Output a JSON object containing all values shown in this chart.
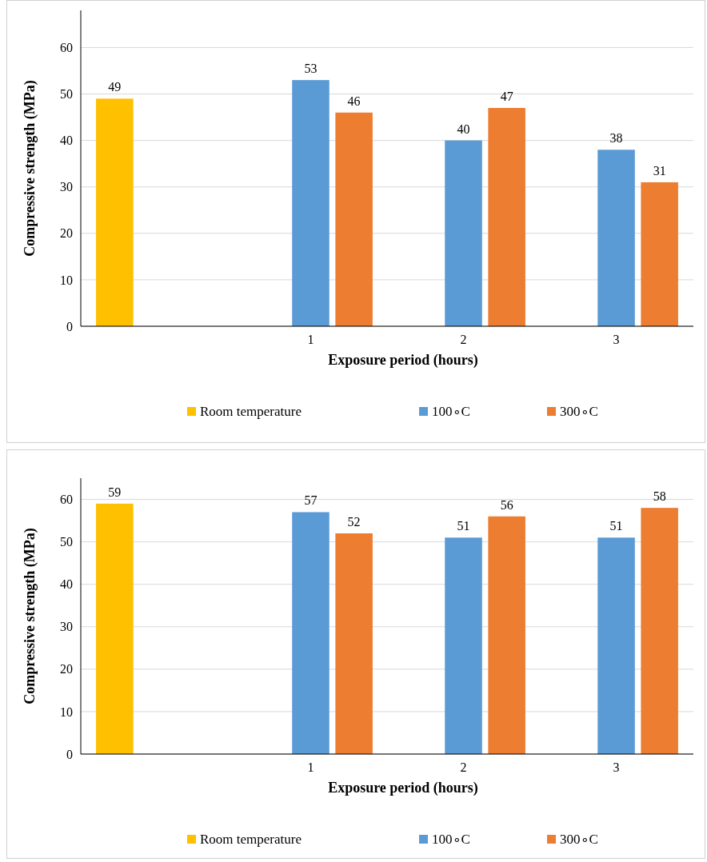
{
  "chart_data": [
    {
      "type": "bar",
      "xlabel": "Exposure period (hours)",
      "ylabel": "Compressive strength (MPa)",
      "categories": [
        null,
        "1",
        "2",
        "3"
      ],
      "series": [
        {
          "name": "Room temperature",
          "color": "#ffc000",
          "values": [
            49,
            null,
            null,
            null
          ]
        },
        {
          "name": "100∘C",
          "color": "#5b9bd5",
          "values": [
            null,
            53,
            40,
            38
          ]
        },
        {
          "name": "300∘C",
          "color": "#ed7d31",
          "values": [
            null,
            46,
            47,
            31
          ]
        }
      ],
      "ylim": [
        0,
        68
      ],
      "yticks": [
        0,
        10,
        20,
        30,
        40,
        50,
        60
      ],
      "grid": "y",
      "legend": "bottom",
      "data_labels": true
    },
    {
      "type": "bar",
      "xlabel": "Exposure period (hours)",
      "ylabel": "Compressive strength (MPa)",
      "categories": [
        null,
        "1",
        "2",
        "3"
      ],
      "series": [
        {
          "name": "Room temperature",
          "color": "#ffc000",
          "values": [
            59,
            null,
            null,
            null
          ]
        },
        {
          "name": "100∘C",
          "color": "#5b9bd5",
          "values": [
            null,
            57,
            51,
            51
          ]
        },
        {
          "name": "300∘C",
          "color": "#ed7d31",
          "values": [
            null,
            52,
            56,
            58
          ]
        }
      ],
      "ylim": [
        0,
        65
      ],
      "yticks": [
        0,
        10,
        20,
        30,
        40,
        50,
        60
      ],
      "grid": "y",
      "legend": "bottom",
      "data_labels": true
    }
  ]
}
